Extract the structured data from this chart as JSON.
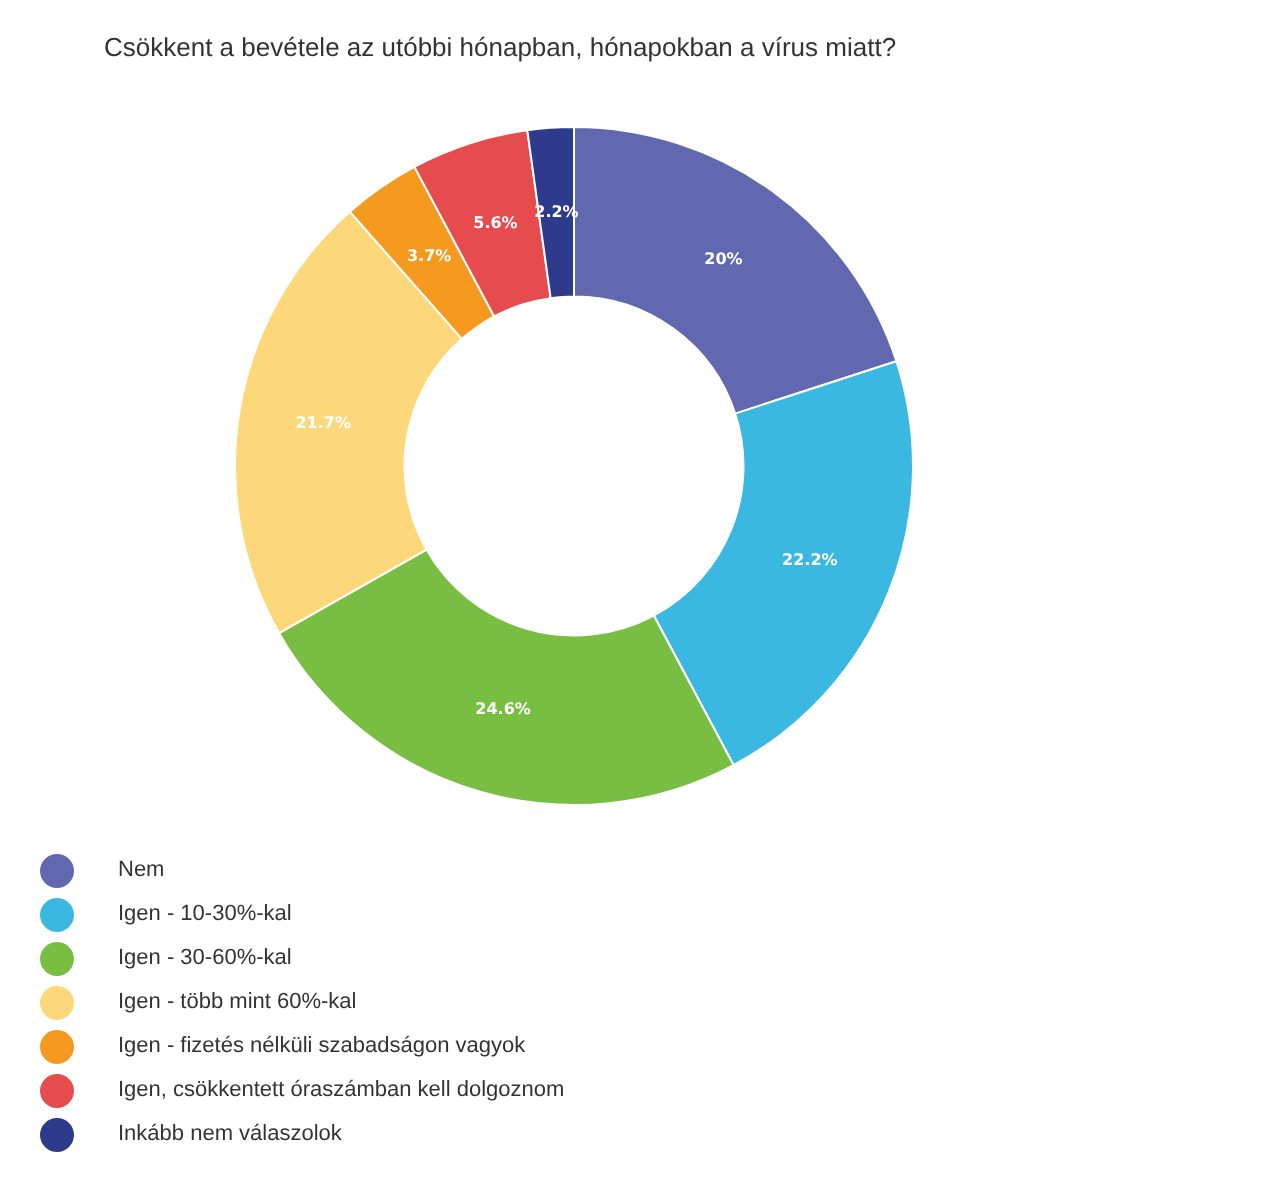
{
  "chart_data": {
    "type": "donut",
    "title": "Csökkent a bevétele az utóbbi hónapban, hónapokban a vírus miatt?",
    "categories": [
      "Nem",
      "Igen - 10-30%-kal",
      "Igen - 30-60%-kal",
      "Igen - több mint 60%-kal",
      "Igen - fizetés nélküli szabadságon vagyok",
      "Igen, csökkentett óraszámban kell dolgoznom",
      "Inkább nem válaszolok"
    ],
    "values": [
      20,
      22.2,
      24.6,
      21.7,
      3.7,
      5.6,
      2.2
    ],
    "value_labels": [
      "20%",
      "22.2%",
      "24.6%",
      "21.7%",
      "3.7%",
      "5.6%",
      "2.2%"
    ],
    "colors": [
      "#6168b0",
      "#3bb8e2",
      "#78be43",
      "#fcd87a",
      "#f59a1f",
      "#e64b4d",
      "#2e3a8c"
    ],
    "legend": "bottom left"
  }
}
